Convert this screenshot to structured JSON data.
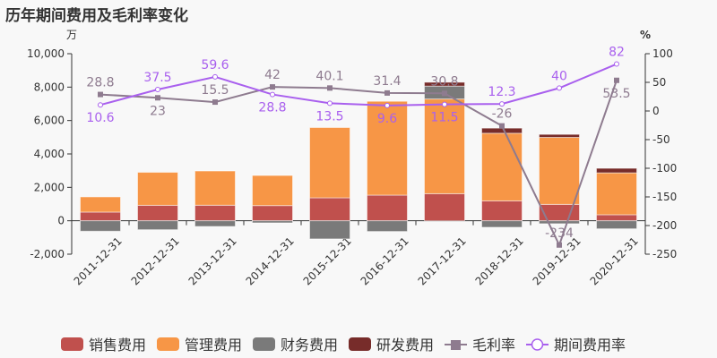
{
  "chart_data": {
    "type": "bar",
    "title": "历年期间费用及毛利率变化",
    "left_unit": "万",
    "right_unit": "%",
    "categories": [
      "2011-12-31",
      "2012-12-31",
      "2013-12-31",
      "2014-12-31",
      "2015-12-31",
      "2016-12-31",
      "2017-12-31",
      "2018-12-31",
      "2019-12-31",
      "2020-12-31"
    ],
    "left_axis": {
      "ylim": [
        -2000,
        10000
      ],
      "ticks": [
        -2000,
        0,
        2000,
        4000,
        6000,
        8000,
        10000
      ],
      "tick_labels": [
        "-2,000",
        "0",
        "2,000",
        "4,000",
        "6,000",
        "8,000",
        "10,000"
      ]
    },
    "right_axis": {
      "ylim": [
        -250,
        100
      ],
      "ticks": [
        -250,
        -200,
        -150,
        -100,
        -50,
        0,
        50,
        100
      ],
      "tick_labels": [
        "-250",
        "-200",
        "-150",
        "-100",
        "-50",
        "0",
        "50",
        "100"
      ]
    },
    "bar_series": [
      {
        "name": "销售费用",
        "color": "#c0504d",
        "values": [
          520,
          925,
          930,
          910,
          1375,
          1535,
          1620,
          1190,
          980,
          360
        ]
      },
      {
        "name": "管理费用",
        "color": "#f79646",
        "values": [
          910,
          1975,
          2050,
          1800,
          4205,
          5615,
          5670,
          4050,
          4010,
          2510
        ]
      },
      {
        "name": "财务费用",
        "color": "#7a7a7a",
        "values": [
          -625,
          -535,
          -340,
          -125,
          -1085,
          -640,
          770,
          -390,
          -175,
          -480
        ]
      },
      {
        "name": "研发费用",
        "color": "#772c2a",
        "values": [
          0,
          0,
          0,
          0,
          0,
          0,
          230,
          305,
          180,
          270
        ]
      }
    ],
    "line_series": [
      {
        "name": "毛利率",
        "color": "#8e7b8f",
        "values": [
          28.8,
          23,
          15.5,
          42,
          40.1,
          31.4,
          30.8,
          -26,
          -234,
          53.5
        ],
        "labels": [
          "28.8",
          "23",
          "15.5",
          "42",
          "40.1",
          "31.4",
          "30.8",
          "-26",
          "-234",
          "53.5"
        ]
      },
      {
        "name": "期间费用率",
        "color": "#a960ee",
        "values": [
          10.6,
          37.5,
          59.6,
          28.8,
          13.5,
          9.6,
          11.5,
          12.3,
          40,
          82
        ],
        "labels": [
          "10.6",
          "37.5",
          "59.6",
          "28.8",
          "13.5",
          "9.6",
          "11.5",
          "12.3",
          "40",
          "82"
        ]
      }
    ],
    "legend_position": "bottom"
  }
}
